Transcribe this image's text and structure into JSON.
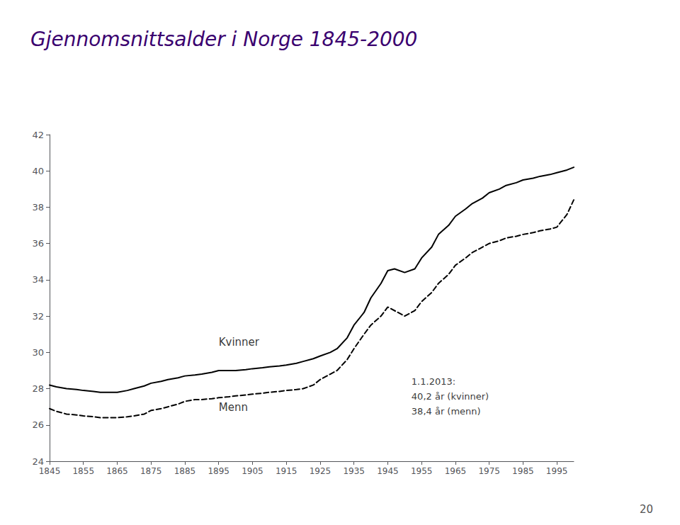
{
  "chart_data": {
    "type": "line",
    "title": "Gjennomsnittsalder i Norge 1845-2000",
    "xlim": [
      1845,
      2000
    ],
    "xticks": [
      1845,
      1855,
      1865,
      1875,
      1885,
      1895,
      1905,
      1915,
      1925,
      1935,
      1945,
      1955,
      1965,
      1975,
      1985,
      1995
    ],
    "ylim": [
      24,
      42
    ],
    "yticks": [
      24,
      26,
      28,
      30,
      32,
      34,
      36,
      38,
      40,
      42
    ],
    "grid": false,
    "series": [
      {
        "color": "#000000",
        "line_style": "solid",
        "x": [
          1845,
          1847,
          1850,
          1853,
          1855,
          1858,
          1860,
          1863,
          1865,
          1868,
          1870,
          1873,
          1875,
          1878,
          1880,
          1883,
          1885,
          1888,
          1890,
          1893,
          1895,
          1898,
          1900,
          1903,
          1905,
          1908,
          1910,
          1913,
          1915,
          1918,
          1920,
          1923,
          1925,
          1928,
          1930,
          1933,
          1935,
          1938,
          1940,
          1943,
          1945,
          1947,
          1950,
          1953,
          1955,
          1958,
          1960,
          1963,
          1965,
          1968,
          1970,
          1973,
          1975,
          1978,
          1980,
          1983,
          1985,
          1988,
          1990,
          1993,
          1995,
          1998,
          2000
        ],
        "values": [
          28.2,
          28.1,
          28.0,
          27.95,
          27.9,
          27.85,
          27.8,
          27.8,
          27.8,
          27.9,
          28.0,
          28.15,
          28.3,
          28.4,
          28.5,
          28.6,
          28.7,
          28.75,
          28.8,
          28.9,
          29.0,
          29.0,
          29.0,
          29.05,
          29.1,
          29.15,
          29.2,
          29.25,
          29.3,
          29.4,
          29.5,
          29.65,
          29.8,
          30.0,
          30.2,
          30.8,
          31.5,
          32.2,
          33.0,
          33.8,
          34.5,
          34.6,
          34.4,
          34.6,
          35.2,
          35.8,
          36.5,
          37.0,
          37.5,
          37.9,
          38.2,
          38.5,
          38.8,
          39.0,
          39.2,
          39.35,
          39.5,
          39.6,
          39.7,
          39.8,
          39.9,
          40.05,
          40.2
        ]
      },
      {
        "color": "#000000",
        "line_style": "dashed",
        "x": [
          1845,
          1847,
          1850,
          1853,
          1855,
          1858,
          1860,
          1863,
          1865,
          1868,
          1870,
          1873,
          1875,
          1878,
          1880,
          1883,
          1885,
          1888,
          1890,
          1893,
          1895,
          1898,
          1900,
          1903,
          1905,
          1908,
          1910,
          1913,
          1915,
          1918,
          1920,
          1923,
          1925,
          1928,
          1930,
          1933,
          1935,
          1938,
          1940,
          1943,
          1945,
          1948,
          1950,
          1953,
          1955,
          1958,
          1960,
          1963,
          1965,
          1968,
          1970,
          1973,
          1975,
          1978,
          1980,
          1983,
          1985,
          1988,
          1990,
          1993,
          1995,
          1998,
          2000
        ],
        "values": [
          26.9,
          26.75,
          26.6,
          26.55,
          26.5,
          26.45,
          26.4,
          26.4,
          26.4,
          26.45,
          26.5,
          26.6,
          26.8,
          26.9,
          27.0,
          27.15,
          27.3,
          27.4,
          27.4,
          27.45,
          27.5,
          27.55,
          27.6,
          27.65,
          27.7,
          27.75,
          27.8,
          27.85,
          27.9,
          27.95,
          28.0,
          28.2,
          28.5,
          28.8,
          29.0,
          29.6,
          30.2,
          31.0,
          31.5,
          32.0,
          32.5,
          32.2,
          32.0,
          32.3,
          32.8,
          33.3,
          33.8,
          34.3,
          34.8,
          35.2,
          35.5,
          35.8,
          36.0,
          36.15,
          36.3,
          36.4,
          36.5,
          36.6,
          36.7,
          36.8,
          36.9,
          37.6,
          38.4
        ]
      }
    ],
    "annotations": [
      {
        "text": "Kvinner",
        "x": 1895,
        "y": 30.2,
        "anchor": "bottom"
      },
      {
        "text": "Menn",
        "x": 1895,
        "y": 27.3,
        "anchor": "top"
      },
      {
        "text": "1.1.2013:\n40,2 år (kvinner)\n38,4 år (menn)",
        "x": 1952,
        "y": 28.8,
        "anchor": "top"
      }
    ],
    "page_number": "20"
  }
}
